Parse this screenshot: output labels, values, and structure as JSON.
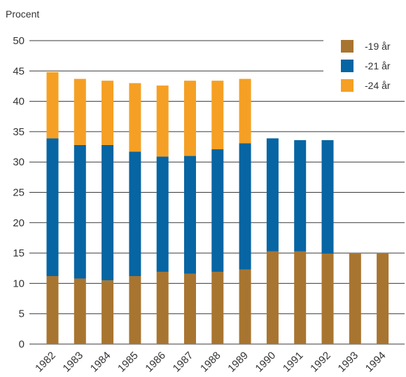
{
  "chart_data": {
    "type": "bar",
    "stacked": true,
    "ylabel": "Procent",
    "ylim": [
      0,
      50
    ],
    "yticks": [
      0,
      5,
      10,
      15,
      20,
      25,
      30,
      35,
      40,
      45,
      50
    ],
    "grid": "horizontal",
    "legend_position": "top-right",
    "categories": [
      "1982",
      "1983",
      "1984",
      "1985",
      "1986",
      "1987",
      "1988",
      "1989",
      "1990",
      "1991",
      "1992",
      "1993",
      "1994"
    ],
    "series": [
      {
        "name": "-19 år",
        "color": "#a87530",
        "values": [
          11.2,
          10.8,
          10.5,
          11.2,
          11.9,
          11.6,
          11.9,
          12.3,
          15.3,
          15.3,
          14.9,
          14.9,
          14.9
        ]
      },
      {
        "name": "-21 år",
        "color": "#0765a3",
        "values": [
          22.7,
          22.0,
          22.3,
          20.5,
          19.0,
          19.4,
          20.2,
          20.8,
          18.6,
          18.3,
          18.7,
          0,
          0
        ]
      },
      {
        "name": "-24 år",
        "color": "#f5a024",
        "values": [
          10.9,
          10.9,
          10.6,
          11.3,
          11.7,
          12.4,
          11.3,
          10.6,
          0,
          0,
          0,
          0,
          0
        ]
      }
    ]
  }
}
